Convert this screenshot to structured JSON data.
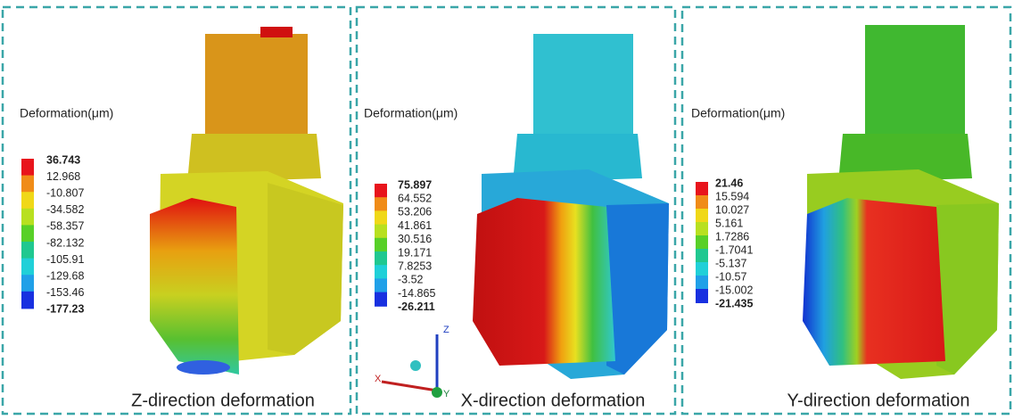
{
  "panels": [
    {
      "legend": {
        "title": "Deformation(μm)",
        "values": [
          "36.743",
          "12.968",
          "-10.807",
          "-34.582",
          "-58.357",
          "-82.132",
          "-105.91",
          "-129.68",
          "-153.46",
          "-177.23"
        ]
      },
      "caption": "Z-direction deformation"
    },
    {
      "legend": {
        "title": "Deformation(μm)",
        "values": [
          "75.897",
          "64.552",
          "53.206",
          "41.861",
          "30.516",
          "19.171",
          "7.8253",
          "-3.52",
          "-14.865",
          "-26.211"
        ]
      },
      "caption": "X-direction deformation"
    },
    {
      "legend": {
        "title": "Deformation(μm)",
        "values": [
          "21.46",
          "15.594",
          "10.027",
          "5.161",
          "1.7286",
          "-1.7041",
          "-5.137",
          "-10.57",
          "-15.002",
          "-21.435"
        ]
      },
      "caption": "Y-direction deformation"
    }
  ],
  "axes": {
    "x": "X",
    "y": "Y",
    "z": "Z"
  }
}
